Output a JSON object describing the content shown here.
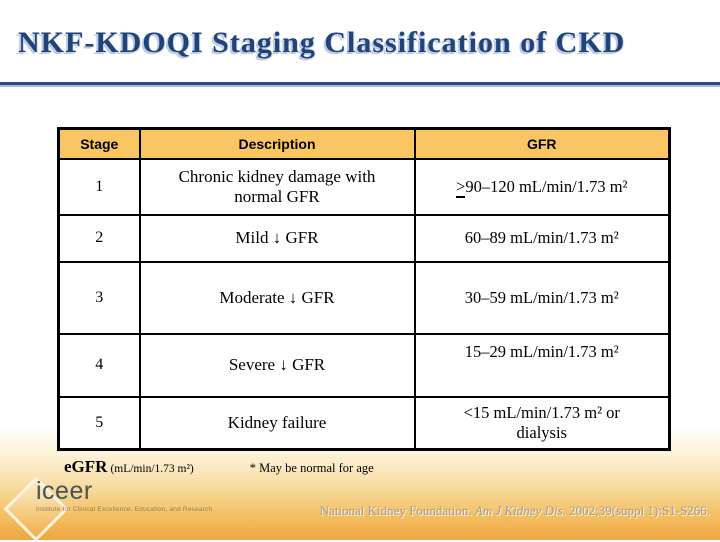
{
  "slide": {
    "title": "NKF-KDOQI Staging Classification of CKD",
    "colors": {
      "title_text": "#1F4479",
      "title_rule": "#2C4C7E",
      "table_header_bg": "#F9C663",
      "table_border": "#000000",
      "gradient_bottom": "#EFA740",
      "citation_text": "#9D9D95",
      "logo_text": "#46535A"
    }
  },
  "table": {
    "headers": [
      "Stage",
      "Description",
      "GFR"
    ],
    "rows": [
      {
        "stage": "1",
        "description": "Chronic kidney damage with\nnormal GFR",
        "gfr_prefix": ">",
        "gfr": "90–120 mL/min/1.73 m²"
      },
      {
        "stage": "2",
        "description": "Mild ↓ GFR",
        "gfr_prefix": "",
        "gfr": "60–89 mL/min/1.73 m²"
      },
      {
        "stage": "3",
        "description": "Moderate ↓ GFR",
        "gfr_prefix": "",
        "gfr": "30–59 mL/min/1.73 m²"
      },
      {
        "stage": "4",
        "description": "Severe ↓ GFR",
        "gfr_prefix": "",
        "gfr": "15–29 mL/min/1.73 m²"
      },
      {
        "stage": "5",
        "description": "Kidney failure",
        "gfr_prefix": "",
        "gfr": "<15 mL/min/1.73 m² or\ndialysis"
      }
    ]
  },
  "footnotes": {
    "egfr_label": "eGFR",
    "egfr_unit": "(mL/min/1.73 m²)",
    "asterisk_note": "* May be normal for age"
  },
  "logo": {
    "name": "iceer",
    "tagline": "Institute for Clinical Excellence, Education, and Research"
  },
  "citation": {
    "prefix": "National Kidney Foundation. ",
    "journal": "Am J Kidney Dis",
    "suffix": ". 2002;39(suppl 1):S1-S266."
  }
}
